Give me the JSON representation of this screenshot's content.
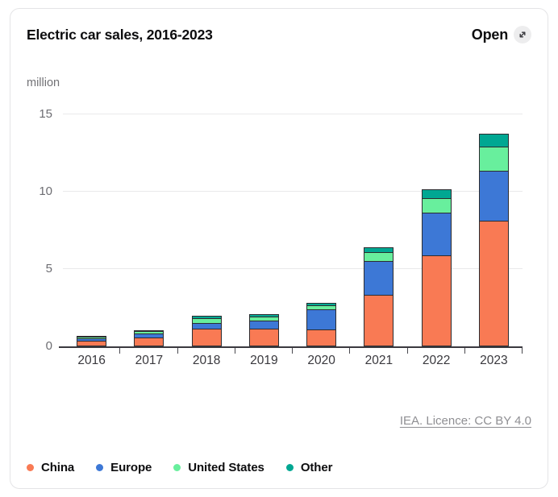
{
  "card": {
    "title": "Electric car sales, 2016-2023",
    "open_label": "Open",
    "unit_label": "million",
    "source_link": "IEA. Licence: CC BY 4.0"
  },
  "chart_data": {
    "type": "bar",
    "stacked": true,
    "title": "Electric car sales, 2016-2023",
    "ylabel": "million",
    "xlabel": "",
    "categories": [
      "2016",
      "2017",
      "2018",
      "2019",
      "2020",
      "2021",
      "2022",
      "2023"
    ],
    "series": [
      {
        "name": "China",
        "color": "#f97a54",
        "values": [
          0.34,
          0.58,
          1.15,
          1.15,
          1.1,
          3.35,
          5.9,
          8.1
        ]
      },
      {
        "name": "Europe",
        "color": "#3d78d6",
        "values": [
          0.2,
          0.3,
          0.4,
          0.55,
          1.35,
          2.25,
          2.8,
          3.3
        ]
      },
      {
        "name": "United States",
        "color": "#68ef9d",
        "values": [
          0.16,
          0.2,
          0.35,
          0.32,
          0.3,
          0.6,
          1.0,
          1.6
        ]
      },
      {
        "name": "Other",
        "color": "#00a792",
        "values": [
          0.05,
          0.13,
          0.22,
          0.22,
          0.2,
          0.35,
          0.65,
          0.9
        ]
      }
    ],
    "yticks": [
      0,
      5,
      10,
      15
    ],
    "ylim": [
      0,
      16
    ],
    "grid": true,
    "legend_position": "bottom"
  }
}
